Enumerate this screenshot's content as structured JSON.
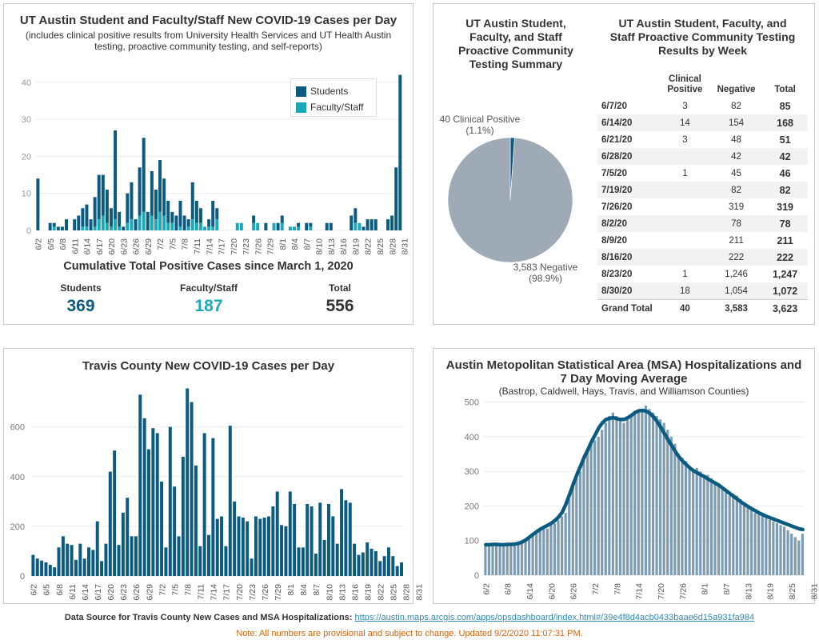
{
  "panel1": {
    "title": "UT Austin Student and Faculty/Staff New COVID-19 Cases per Day",
    "subtitle_line1": "(includes clinical positive results from University Health Services and UT Health Austin",
    "subtitle_line2": "testing, proactive community testing, and self-reports)",
    "legend": {
      "students": "Students",
      "faculty": "Faculty/Staff"
    },
    "cumulative": {
      "title": "Cumulative Total Positive Cases since March 1, 2020",
      "students_label": "Students",
      "students_value": "369",
      "faculty_label": "Faculty/Staff",
      "faculty_value": "187",
      "total_label": "Total",
      "total_value": "556"
    }
  },
  "panel2": {
    "pie_title": [
      "UT Austin Student,",
      "Faculty, and Staff",
      "Proactive Community",
      "Testing Summary"
    ],
    "table_title": [
      "UT Austin Student, Faculty, and",
      "Staff Proactive Community Testing",
      "Results by Week"
    ],
    "pie_labels": {
      "positive_line1": "40 Clinical Positive",
      "positive_line2": "(1.1%)",
      "negative_line1": "3,583 Negative",
      "negative_line2": "(98.9%)"
    },
    "table": {
      "headers": [
        "",
        "Clinical Positive",
        "Negative",
        "Total"
      ],
      "rows": [
        [
          "6/7/20",
          "3",
          "82",
          "85"
        ],
        [
          "6/14/20",
          "14",
          "154",
          "168"
        ],
        [
          "6/21/20",
          "3",
          "48",
          "51"
        ],
        [
          "6/28/20",
          "",
          "42",
          "42"
        ],
        [
          "7/5/20",
          "1",
          "45",
          "46"
        ],
        [
          "7/19/20",
          "",
          "82",
          "82"
        ],
        [
          "7/26/20",
          "",
          "319",
          "319"
        ],
        [
          "8/2/20",
          "",
          "78",
          "78"
        ],
        [
          "8/9/20",
          "",
          "211",
          "211"
        ],
        [
          "8/16/20",
          "",
          "222",
          "222"
        ],
        [
          "8/23/20",
          "1",
          "1,246",
          "1,247"
        ],
        [
          "8/30/20",
          "18",
          "1,054",
          "1,072"
        ]
      ],
      "grand_total": [
        "Grand Total",
        "40",
        "3,583",
        "3,623"
      ]
    }
  },
  "panel3": {
    "title": "Travis County New COVID-19 Cases per Day"
  },
  "panel4": {
    "title_line1": "Austin Metopolitan Statistical Area (MSA) Hospitalizations and",
    "title_line2": "7 Day Moving Average",
    "subtitle": "(Bastrop, Caldwell, Hays, Travis, and Williamson Counties)"
  },
  "footer": {
    "source_label": "Data Source for Travis County New Cases and MSA Hospitalizations:",
    "source_url": "https://austin.maps.arcgis.com/apps/opsdashboard/index.html#/39e4f8d4acb0433baae6d15a931fa984",
    "note": "Note: All numbers are provisional and subject to change. Updated 9/2/2020 11:07:31 PM."
  },
  "colors": {
    "dark": "#0b5a80",
    "teal": "#1aa8b8",
    "gray": "#9eabb6",
    "hosp_bar": "#7d9cb3",
    "line": "#0b5a80"
  },
  "chart_data": [
    {
      "type": "bar",
      "stacked": true,
      "title": "UT Austin Student and Faculty/Staff New COVID-19 Cases per Day",
      "x_start": "6/2",
      "x_tick_labels": [
        "6/2",
        "6/5",
        "6/8",
        "6/11",
        "6/14",
        "6/17",
        "6/20",
        "6/23",
        "6/26",
        "6/29",
        "7/2",
        "7/5",
        "7/8",
        "7/11",
        "7/14",
        "7/17",
        "7/20",
        "7/23",
        "7/26",
        "7/29",
        "8/1",
        "8/4",
        "8/7",
        "8/10",
        "8/13",
        "8/16",
        "8/19",
        "8/22",
        "8/25",
        "8/28",
        "8/31"
      ],
      "ylim": [
        0,
        43
      ],
      "y_ticks": [
        0,
        10,
        20,
        30,
        40
      ],
      "series": [
        {
          "name": "Students",
          "values": [
            14,
            0,
            0,
            2,
            1,
            1,
            1,
            3,
            0,
            3,
            4,
            5,
            6,
            3,
            8,
            12,
            11,
            9,
            5,
            24,
            4,
            1,
            8,
            10,
            3,
            13,
            20,
            5,
            12,
            8,
            14,
            10,
            6,
            3,
            4,
            7,
            4,
            2,
            10,
            6,
            4,
            0,
            2,
            7,
            3,
            0,
            0,
            0,
            0,
            0,
            0,
            0,
            0,
            2,
            0,
            0,
            2,
            0,
            0,
            2,
            2,
            0,
            0,
            0,
            1,
            0,
            2,
            1,
            0,
            0,
            0,
            2,
            2,
            0,
            0,
            0,
            0,
            4,
            4,
            0,
            1,
            3,
            3,
            3,
            0,
            0,
            3,
            4,
            17,
            42
          ]
        },
        {
          "name": "Faculty/Staff",
          "values": [
            0,
            0,
            0,
            0,
            1,
            0,
            0,
            0,
            0,
            0,
            0,
            1,
            1,
            0,
            1,
            3,
            4,
            2,
            1,
            3,
            1,
            0,
            2,
            3,
            0,
            4,
            5,
            0,
            4,
            3,
            5,
            4,
            2,
            2,
            0,
            1,
            0,
            1,
            3,
            2,
            2,
            1,
            1,
            1,
            3,
            0,
            0,
            0,
            0,
            2,
            2,
            0,
            0,
            2,
            2,
            0,
            0,
            0,
            2,
            0,
            2,
            0,
            1,
            1,
            1,
            0,
            0,
            1,
            0,
            0,
            0,
            0,
            0,
            0,
            0,
            0,
            0,
            0,
            2,
            2,
            0,
            0,
            0,
            0,
            0,
            0,
            0,
            0,
            0,
            0
          ]
        }
      ]
    },
    {
      "type": "pie",
      "title": "UT Austin Student, Faculty, and Staff Proactive Community Testing Summary",
      "labels": [
        "Clinical Positive",
        "Negative"
      ],
      "values": [
        40,
        3583
      ],
      "percents": [
        1.1,
        98.9
      ]
    },
    {
      "type": "bar",
      "title": "Travis County New COVID-19 Cases per Day",
      "x_start": "6/2",
      "x_tick_labels": [
        "6/2",
        "6/5",
        "6/8",
        "6/11",
        "6/14",
        "6/17",
        "6/20",
        "6/23",
        "6/26",
        "6/29",
        "7/2",
        "7/5",
        "7/8",
        "7/11",
        "7/14",
        "7/17",
        "7/20",
        "7/23",
        "7/26",
        "7/29",
        "8/1",
        "8/4",
        "8/7",
        "8/10",
        "8/13",
        "8/16",
        "8/19",
        "8/22",
        "8/25",
        "8/28",
        "8/31"
      ],
      "ylim": [
        0,
        760
      ],
      "y_ticks": [
        0,
        200,
        400,
        600
      ],
      "values": [
        85,
        70,
        62,
        55,
        45,
        35,
        115,
        160,
        130,
        125,
        65,
        130,
        70,
        115,
        105,
        220,
        60,
        130,
        420,
        505,
        125,
        255,
        315,
        160,
        160,
        730,
        635,
        510,
        595,
        575,
        380,
        115,
        600,
        360,
        160,
        480,
        755,
        700,
        445,
        120,
        575,
        165,
        555,
        230,
        240,
        120,
        605,
        300,
        240,
        235,
        220,
        70,
        240,
        230,
        235,
        240,
        280,
        340,
        205,
        200,
        340,
        290,
        115,
        115,
        290,
        280,
        90,
        295,
        145,
        290,
        240,
        130,
        350,
        305,
        295,
        130,
        85,
        95,
        135,
        110,
        100,
        60,
        80,
        115,
        80,
        40,
        55
      ]
    },
    {
      "type": "bar",
      "title": "Austin Metopolitan Statistical Area (MSA) Hospitalizations and 7 Day Moving Average",
      "subtitle": "(Bastrop, Caldwell, Hays, Travis, and Williamson Counties)",
      "x_start": "6/2",
      "x_tick_labels": [
        "6/2",
        "6/8",
        "6/14",
        "6/20",
        "6/26",
        "7/2",
        "7/8",
        "7/14",
        "7/20",
        "7/26",
        "8/1",
        "8/7",
        "8/13",
        "8/19",
        "8/25",
        "8/31"
      ],
      "ylim": [
        0,
        520
      ],
      "y_ticks": [
        0,
        100,
        200,
        300,
        400,
        500
      ],
      "series": [
        {
          "type": "bar",
          "values": [
            85,
            86,
            87,
            88,
            85,
            90,
            87,
            88,
            86,
            90,
            92,
            100,
            110,
            120,
            125,
            130,
            140,
            135,
            145,
            150,
            160,
            170,
            180,
            220,
            270,
            290,
            300,
            330,
            360,
            380,
            390,
            400,
            420,
            440,
            460,
            470,
            460,
            450,
            440,
            450,
            460,
            470,
            470,
            480,
            490,
            480,
            470,
            460,
            450,
            440,
            420,
            400,
            380,
            350,
            340,
            330,
            310,
            300,
            310,
            300,
            290,
            290,
            280,
            270,
            260,
            250,
            240,
            230,
            235,
            230,
            220,
            210,
            200,
            190,
            180,
            175,
            170,
            165,
            160,
            155,
            150,
            145,
            140,
            130,
            120,
            110,
            100,
            120
          ]
        },
        {
          "type": "line",
          "name": "7 Day Moving Average",
          "values": [
            88,
            88,
            89,
            89,
            88,
            88,
            89,
            89,
            90,
            92,
            96,
            102,
            110,
            118,
            126,
            133,
            139,
            144,
            150,
            158,
            168,
            182,
            205,
            233,
            262,
            290,
            315,
            340,
            362,
            385,
            405,
            425,
            440,
            450,
            453,
            455,
            452,
            450,
            450,
            455,
            462,
            470,
            475,
            476,
            474,
            468,
            458,
            445,
            428,
            410,
            392,
            375,
            358,
            342,
            330,
            320,
            310,
            302,
            296,
            290,
            285,
            278,
            272,
            266,
            260,
            252,
            244,
            236,
            228,
            220,
            212,
            205,
            198,
            192,
            186,
            180,
            175,
            170,
            166,
            162,
            158,
            154,
            150,
            146,
            142,
            138,
            134,
            132
          ]
        }
      ]
    }
  ]
}
